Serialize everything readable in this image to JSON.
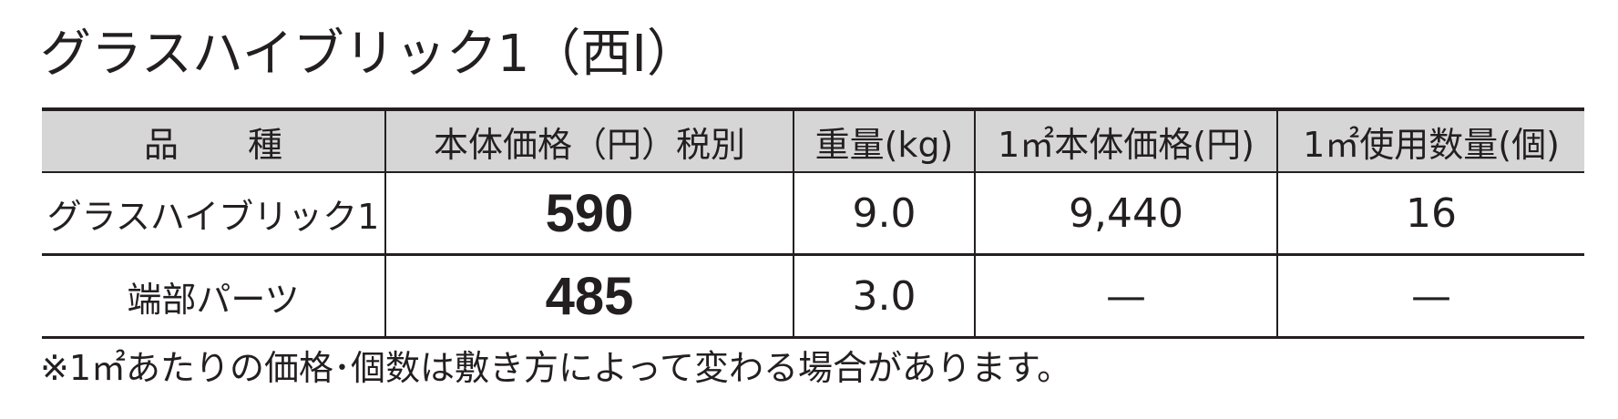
{
  "header": {
    "title": "グラスハイブリック1（西Ⅰ）"
  },
  "table": {
    "columns": [
      "品　　種",
      "本体価格（円）税別",
      "重量(kg)",
      "1㎡本体価格(円)",
      "1㎡使用数量(個)"
    ],
    "rows": [
      [
        "グラスハイブリック1",
        "590",
        "9.0",
        "9,440",
        "16"
      ],
      [
        "端部パーツ",
        "485",
        "3.0",
        "—",
        "—"
      ]
    ]
  },
  "note": "※1㎡あたりの価格･個数は敷き方によって変わる場合があります。"
}
